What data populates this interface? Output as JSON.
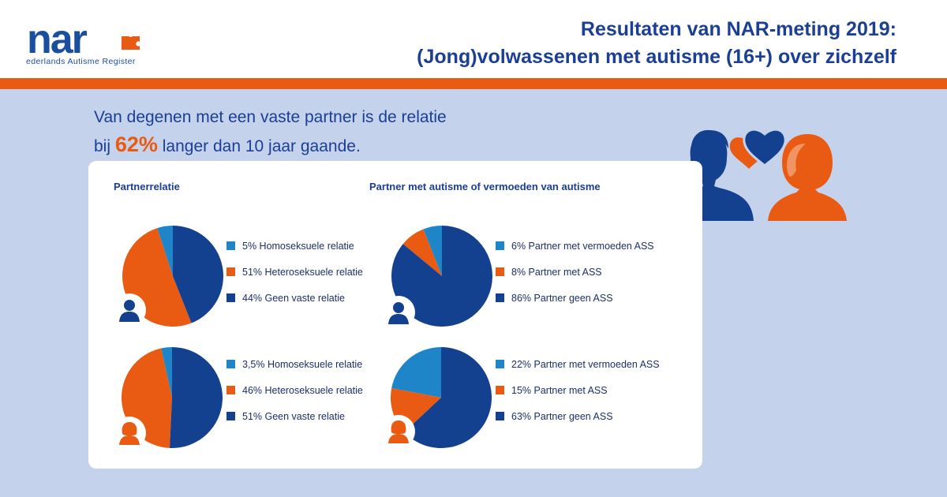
{
  "header": {
    "logo_word": "nar",
    "logo_tagline": "ederlands Autisme Register",
    "title_line1": "Resultaten van NAR-meting 2019:",
    "title_line2": "(Jong)volwassenen met autisme (16+) over zichzelf"
  },
  "intro": {
    "line1": "Van degenen met een vaste partner is de relatie",
    "line2_prefix": "bij",
    "highlight": "62%",
    "line2_suffix": "langer dan 10 jaar gaande."
  },
  "colors": {
    "dark_blue": "#13418f",
    "orange": "#e95b12",
    "light_blue": "#1e86c8",
    "title_blue": "#1a3f95"
  },
  "sections": {
    "partnerrelatie_title": "Partnerrelatie",
    "autisme_title": "Partner met autisme of vermoeden van autisme"
  },
  "chart_data": [
    {
      "type": "pie",
      "title": "Partnerrelatie",
      "group": "man",
      "categories": [
        "Homoseksuele relatie",
        "Heteroseksuele relatie",
        "Geen vaste relatie"
      ],
      "values": [
        5,
        51,
        44
      ],
      "labels": [
        "5% Homoseksuele relatie",
        "51% Heteroseksuele relatie",
        "44% Geen vaste relatie"
      ]
    },
    {
      "type": "pie",
      "title": "Partnerrelatie",
      "group": "vrouw",
      "categories": [
        "Homoseksuele relatie",
        "Heteroseksuele relatie",
        "Geen vaste relatie"
      ],
      "values": [
        3.5,
        46,
        51
      ],
      "labels": [
        "3,5% Homoseksuele relatie",
        "46% Heteroseksuele relatie",
        "51% Geen vaste relatie"
      ]
    },
    {
      "type": "pie",
      "title": "Partner met autisme of vermoeden van autisme",
      "group": "man",
      "categories": [
        "Partner met vermoeden ASS",
        "Partner met ASS",
        "Partner geen ASS"
      ],
      "values": [
        6,
        8,
        86
      ],
      "labels": [
        "6% Partner met vermoeden ASS",
        "8% Partner met ASS",
        "86% Partner geen ASS"
      ]
    },
    {
      "type": "pie",
      "title": "Partner met autisme of vermoeden van autisme",
      "group": "vrouw",
      "categories": [
        "Partner met vermoeden ASS",
        "Partner met ASS",
        "Partner geen ASS"
      ],
      "values": [
        22,
        15,
        63
      ],
      "labels": [
        "22% Partner met vermoeden ASS",
        "15% Partner met ASS",
        "63% Partner geen ASS"
      ]
    }
  ]
}
